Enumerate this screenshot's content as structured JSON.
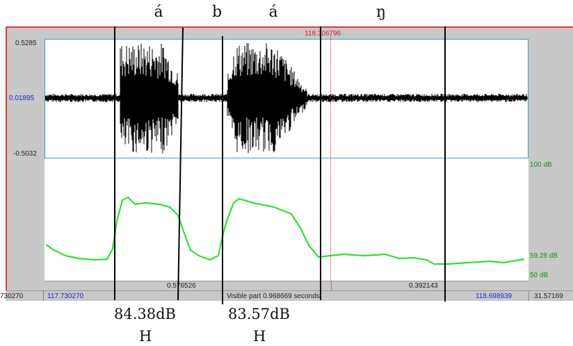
{
  "phonemes": [
    "á",
    "b",
    "á",
    "ŋ"
  ],
  "cursor_time": "118.306796",
  "waveform": {
    "y_max": "0.5285",
    "y_mid": "0.01895",
    "y_min": "-0.5032"
  },
  "intensity": {
    "db_top": "100 dB",
    "db_cursor": "59.28 dB",
    "db_bottom": "50 dB"
  },
  "selection_bar": {
    "left_duration": "0.576526",
    "right_duration": "0.392143"
  },
  "status_bar": {
    "left_cut": "730270",
    "visible_start": "117.730270",
    "visible_part": "Visible part 0.968669 seconds",
    "visible_end": "118.698939",
    "right_cut": "31.57169"
  },
  "annotations": {
    "db1": "84.38dB",
    "db2": "83.57dB",
    "tone1": "H",
    "tone2": "H"
  },
  "colors": {
    "window_border": "#e03a3a",
    "intensity_curve": "#33dd33",
    "waveform": "#000000",
    "cursor": "#d02020"
  }
}
